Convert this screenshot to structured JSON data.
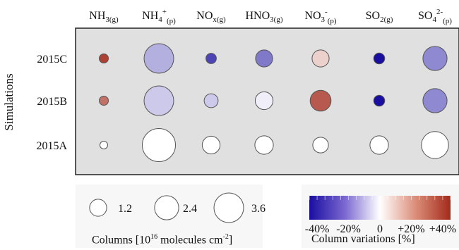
{
  "chart_data": {
    "type": "bubble-matrix",
    "ylabel": "Simulations",
    "columns": [
      {
        "base": "NH",
        "sub1": "3",
        "sup": "",
        "sub2": "(g)"
      },
      {
        "base": "NH",
        "sub1": "4",
        "sup": "+",
        "sub2": "(p)"
      },
      {
        "base": "NO",
        "sub1": "x(g)",
        "sup": "",
        "sub2": ""
      },
      {
        "base": "HNO",
        "sub1": "3",
        "sup": "",
        "sub2": "(g)"
      },
      {
        "base": "NO",
        "sub1": "3",
        "sup": "-",
        "sub2": "(p)"
      },
      {
        "base": "SO",
        "sub1": "2",
        "sup": "",
        "sub2": "(g)"
      },
      {
        "base": "SO",
        "sub1": "4",
        "sup": "2-",
        "sub2": "(p)"
      }
    ],
    "rows": [
      "2015C",
      "2015B",
      "2015A"
    ],
    "size_values": [
      [
        0.35,
        3.6,
        0.45,
        1.2,
        1.2,
        0.5,
        2.4
      ],
      [
        0.35,
        3.6,
        0.8,
        1.3,
        1.8,
        0.5,
        2.4
      ],
      [
        0.25,
        4.5,
        1.3,
        1.4,
        1.0,
        1.4,
        3.0
      ]
    ],
    "color_values": [
      [
        40,
        -15,
        -35,
        -25,
        10,
        -45,
        -22
      ],
      [
        30,
        -10,
        -10,
        -3,
        35,
        -45,
        -22
      ],
      [
        0,
        0,
        0,
        0,
        0,
        0,
        0
      ]
    ],
    "size_legend": {
      "values": [
        1.2,
        2.4,
        3.6
      ],
      "labels": [
        "1.2",
        "2.4",
        "3.6"
      ],
      "sup_text": "16",
      "title_parts": {
        "a": "Columns [10",
        "b": "16",
        "c": " molecules cm",
        "d": "-2",
        "e": "]"
      }
    },
    "color_legend": {
      "range": [
        -45,
        45
      ],
      "tick_labels": [
        "-40%",
        "-20%",
        "0",
        "+20%",
        "+40%"
      ],
      "tick_values": [
        -40,
        -20,
        0,
        20,
        40
      ],
      "title": "Column variations [%]",
      "colors": {
        "negative": "#1a0ea0",
        "zero": "#ffffff",
        "positive": "#a32a1b"
      }
    },
    "panel_color": "#e0e0e0",
    "grid": false
  }
}
